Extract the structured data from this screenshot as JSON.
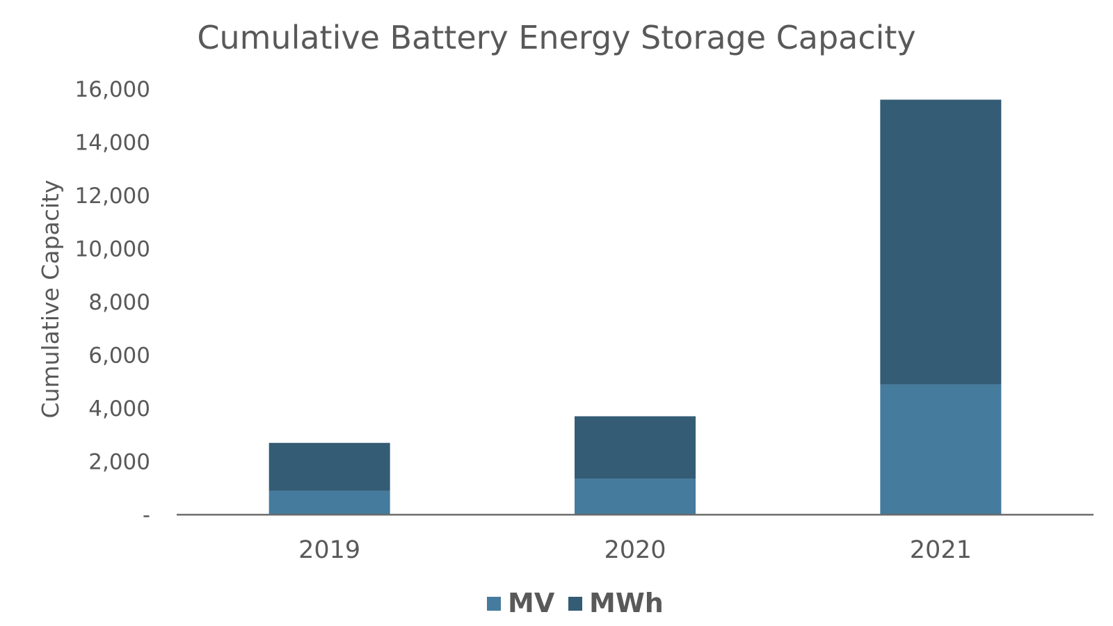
{
  "colors": {
    "text": "#595959",
    "axis": "#6b6b6b",
    "background": "#ffffff"
  },
  "chart_data": {
    "type": "bar",
    "stacked": true,
    "title": "Cumulative Battery Energy Storage Capacity",
    "xlabel": "",
    "ylabel": "Cumulative Capacity",
    "categories": [
      "2019",
      "2020",
      "2021"
    ],
    "series": [
      {
        "name": "MV",
        "color": "#457b9d",
        "values": [
          900,
          1350,
          4900
        ]
      },
      {
        "name": "MWh",
        "color": "#345c75",
        "values": [
          1800,
          2350,
          10700
        ]
      }
    ],
    "ylim": [
      0,
      16000
    ],
    "yticks": [
      0,
      2000,
      4000,
      6000,
      8000,
      10000,
      12000,
      14000,
      16000
    ],
    "ytick_labels": [
      "-",
      "2,000",
      "4,000",
      "6,000",
      "8,000",
      "10,000",
      "12,000",
      "14,000",
      "16,000"
    ],
    "grid": false,
    "legend_position": "bottom"
  }
}
